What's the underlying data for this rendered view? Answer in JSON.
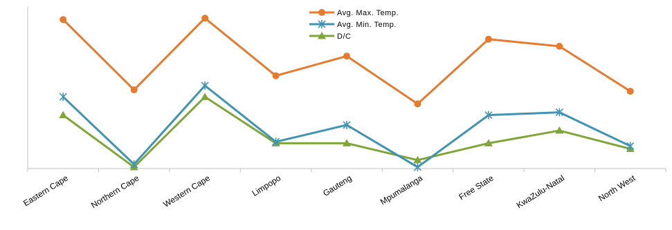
{
  "chart_data": {
    "type": "line",
    "categories": [
      "Eastern Cape",
      "Northern Cape",
      "Western Cape",
      "Limpopo",
      "Gauteng",
      "Mpumalanga",
      "Free State",
      "KwaZulu-Natal",
      "North West"
    ],
    "series": [
      {
        "name": "Avg. Max. Temp.",
        "values": [
          10.6,
          5.6,
          10.7,
          6.6,
          8.0,
          4.6,
          9.2,
          8.7,
          5.5
        ],
        "color": "#e87a2c",
        "marker": "circle"
      },
      {
        "name": "Avg. Min. Temp.",
        "values": [
          5.1,
          0.3,
          5.9,
          1.9,
          3.1,
          0.1,
          3.8,
          4.0,
          1.6
        ],
        "color": "#3e94b3",
        "marker": "asterisk"
      },
      {
        "name": "D/C",
        "values": [
          3.8,
          0.1,
          5.1,
          1.8,
          1.8,
          0.6,
          1.8,
          2.7,
          1.4
        ],
        "color": "#80a637",
        "marker": "triangle"
      }
    ],
    "ylim": [
      0,
      11.5
    ],
    "grid": false,
    "legend_position": "top-center",
    "xlabel": "",
    "ylabel": "",
    "title": ""
  }
}
